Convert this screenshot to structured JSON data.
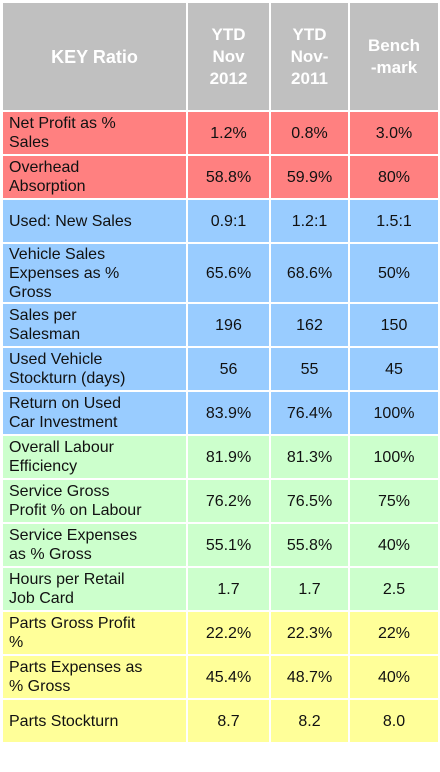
{
  "header": {
    "key": "KEY Ratio",
    "col1": [
      "YTD",
      "Nov",
      "2012"
    ],
    "col2": [
      "YTD",
      "Nov-",
      "2011"
    ],
    "col3": [
      "Bench",
      "-mark"
    ]
  },
  "colors": {
    "header": "#c0c0c0",
    "red": "#ff8080",
    "blue": "#99ccff",
    "green": "#ccffcc",
    "yellow": "#ffff99"
  },
  "rows": [
    {
      "group": "red",
      "label": [
        "Net Profit as %",
        "Sales"
      ],
      "ytd2012": "1.2%",
      "ytd2011": "0.8%",
      "benchmark": "3.0%"
    },
    {
      "group": "red",
      "label": [
        "Overhead",
        "Absorption"
      ],
      "ytd2012": "58.8%",
      "ytd2011": "59.9%",
      "benchmark": "80%"
    },
    {
      "group": "blue",
      "label": [
        "Used: New Sales"
      ],
      "ytd2012": "0.9:1",
      "ytd2011": "1.2:1",
      "benchmark": "1.5:1"
    },
    {
      "group": "blue",
      "label": [
        "Vehicle Sales",
        "Expenses as %",
        "Gross"
      ],
      "ytd2012": "65.6%",
      "ytd2011": "68.6%",
      "benchmark": "50%"
    },
    {
      "group": "blue",
      "label": [
        "Sales per",
        "Salesman"
      ],
      "ytd2012": "196",
      "ytd2011": "162",
      "benchmark": "150"
    },
    {
      "group": "blue",
      "label": [
        "Used Vehicle",
        "Stockturn (days)"
      ],
      "ytd2012": "56",
      "ytd2011": "55",
      "benchmark": "45"
    },
    {
      "group": "blue",
      "label": [
        "Return on Used",
        "Car Investment"
      ],
      "ytd2012": "83.9%",
      "ytd2011": "76.4%",
      "benchmark": "100%"
    },
    {
      "group": "green",
      "label": [
        "Overall Labour",
        "Efficiency"
      ],
      "ytd2012": "81.9%",
      "ytd2011": "81.3%",
      "benchmark": "100%"
    },
    {
      "group": "green",
      "label": [
        "Service Gross",
        "Profit % on Labour"
      ],
      "ytd2012": "76.2%",
      "ytd2011": "76.5%",
      "benchmark": "75%"
    },
    {
      "group": "green",
      "label": [
        "Service Expenses",
        "as % Gross"
      ],
      "ytd2012": "55.1%",
      "ytd2011": "55.8%",
      "benchmark": "40%"
    },
    {
      "group": "green",
      "label": [
        "Hours per Retail",
        "Job Card"
      ],
      "ytd2012": "1.7",
      "ytd2011": "1.7",
      "benchmark": "2.5"
    },
    {
      "group": "yellow",
      "label": [
        "Parts Gross Profit",
        "%"
      ],
      "ytd2012": "22.2%",
      "ytd2011": "22.3%",
      "benchmark": "22%"
    },
    {
      "group": "yellow",
      "label": [
        "Parts Expenses as",
        "% Gross"
      ],
      "ytd2012": "45.4%",
      "ytd2011": "48.7%",
      "benchmark": "40%"
    },
    {
      "group": "yellow",
      "label": [
        "Parts Stockturn"
      ],
      "ytd2012": "8.7",
      "ytd2011": "8.2",
      "benchmark": "8.0"
    }
  ]
}
